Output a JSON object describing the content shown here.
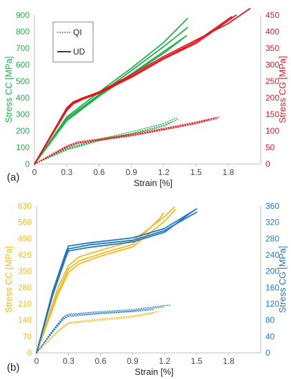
{
  "chart_data": [
    {
      "type": "line",
      "panel_label": "(a)",
      "xlabel": "Strain [%]",
      "ylabel_left": "Stress CC [MPa]",
      "ylabel_right": "Stress CG [MPa]",
      "xlim": [
        0,
        2.1
      ],
      "ylim_left": [
        0,
        900
      ],
      "ylim_right": [
        0,
        450
      ],
      "xticks": [
        "0",
        "0.3",
        "0.6",
        "0.9",
        "1.2",
        "1.5",
        "1.8"
      ],
      "yticks_left": [
        "0",
        "100",
        "200",
        "300",
        "400",
        "500",
        "600",
        "700",
        "800",
        "900"
      ],
      "yticks_right": [
        "0",
        "50",
        "100",
        "150",
        "200",
        "250",
        "300",
        "350",
        "400",
        "450"
      ],
      "colors": {
        "left": "#22b14c",
        "right": "#e8141c"
      },
      "legend": {
        "position": "top-left",
        "entries": [
          {
            "label": "QI",
            "style": "dotted"
          },
          {
            "label": "UD",
            "style": "solid"
          }
        ]
      },
      "series": [
        {
          "axis": "left",
          "style": "solid",
          "x": [
            0,
            0.3,
            0.6,
            0.9,
            1.2,
            1.42
          ],
          "y": [
            0,
            285,
            435,
            580,
            735,
            880
          ]
        },
        {
          "axis": "left",
          "style": "solid",
          "x": [
            0,
            0.3,
            0.6,
            0.9,
            1.2,
            1.42
          ],
          "y": [
            0,
            275,
            420,
            565,
            710,
            825
          ]
        },
        {
          "axis": "left",
          "style": "solid",
          "x": [
            0,
            0.3,
            0.6,
            0.9,
            1.2,
            1.41
          ],
          "y": [
            0,
            265,
            415,
            545,
            680,
            775
          ]
        },
        {
          "axis": "left",
          "style": "solid",
          "x": [
            0,
            0.3,
            0.6,
            0.9,
            1.2,
            1.38
          ],
          "y": [
            0,
            262,
            410,
            540,
            670,
            760
          ]
        },
        {
          "axis": "left",
          "style": "dotted",
          "x": [
            0,
            0.3,
            0.6,
            0.9,
            1.2,
            1.32
          ],
          "y": [
            0,
            95,
            150,
            195,
            245,
            280
          ]
        },
        {
          "axis": "left",
          "style": "dotted",
          "x": [
            0,
            0.3,
            0.6,
            0.9,
            1.2,
            1.33
          ],
          "y": [
            0,
            90,
            145,
            185,
            235,
            270
          ]
        },
        {
          "axis": "left",
          "style": "dotted",
          "x": [
            0,
            0.3,
            0.6,
            0.9,
            1.2,
            1.3
          ],
          "y": [
            0,
            85,
            140,
            180,
            228,
            262
          ]
        },
        {
          "axis": "right",
          "style": "solid",
          "x": [
            0,
            0.3,
            0.36,
            0.45,
            0.6,
            0.9,
            1.2,
            1.5,
            1.8,
            2.0
          ],
          "y": [
            0,
            170,
            188,
            200,
            218,
            270,
            325,
            375,
            425,
            470
          ]
        },
        {
          "axis": "right",
          "style": "solid",
          "x": [
            0,
            0.3,
            0.36,
            0.45,
            0.6,
            0.9,
            1.2,
            1.5,
            1.83
          ],
          "y": [
            0,
            165,
            185,
            198,
            215,
            265,
            320,
            370,
            445
          ]
        },
        {
          "axis": "right",
          "style": "solid",
          "x": [
            0,
            0.3,
            0.36,
            0.45,
            0.6,
            0.9,
            1.2,
            1.5,
            1.87
          ],
          "y": [
            0,
            162,
            182,
            196,
            214,
            262,
            318,
            365,
            450
          ]
        },
        {
          "axis": "right",
          "style": "dotted",
          "x": [
            0,
            0.3,
            0.4,
            0.6,
            0.9,
            1.2,
            1.5,
            1.71
          ],
          "y": [
            0,
            55,
            67,
            76,
            90,
            108,
            127,
            142
          ]
        },
        {
          "axis": "right",
          "style": "dotted",
          "x": [
            0,
            0.3,
            0.4,
            0.6,
            0.9,
            1.2,
            1.5,
            1.68
          ],
          "y": [
            0,
            52,
            64,
            73,
            87,
            105,
            124,
            140
          ]
        },
        {
          "axis": "right",
          "style": "dotted",
          "x": [
            0,
            0.3,
            0.4,
            0.6,
            0.9,
            1.2,
            1.5,
            1.7
          ],
          "y": [
            0,
            50,
            62,
            71,
            85,
            103,
            122,
            138
          ]
        }
      ]
    },
    {
      "type": "line",
      "panel_label": "(b)",
      "xlabel": "Strain [%]",
      "ylabel_left": "Stress CC [MPa]",
      "ylabel_right": "Stress CG [MPa]",
      "xlim": [
        0,
        2.1
      ],
      "ylim_left": [
        0,
        630
      ],
      "ylim_right": [
        0,
        360
      ],
      "xticks": [
        "0",
        "0.3",
        "0.6",
        "0.9",
        "1.2",
        "1.5",
        "1.8"
      ],
      "yticks_left": [
        "0",
        "70",
        "140",
        "210",
        "280",
        "350",
        "420",
        "490",
        "560",
        "630"
      ],
      "yticks_right": [
        "0",
        "40",
        "80",
        "120",
        "160",
        "200",
        "240",
        "280",
        "320",
        "360"
      ],
      "colors": {
        "left": "#f5b820",
        "right": "#1f77c4"
      },
      "series": [
        {
          "axis": "left",
          "style": "solid",
          "x": [
            0,
            0.2,
            0.3,
            0.4,
            0.6,
            0.9,
            1.2,
            1.29
          ],
          "y": [
            0,
            280,
            375,
            412,
            440,
            480,
            585,
            625
          ]
        },
        {
          "axis": "left",
          "style": "solid",
          "x": [
            0,
            0.2,
            0.3,
            0.4,
            0.6,
            0.9,
            1.15,
            1.19
          ],
          "y": [
            0,
            260,
            360,
            395,
            425,
            465,
            575,
            600
          ]
        },
        {
          "axis": "left",
          "style": "solid",
          "x": [
            0,
            0.2,
            0.3,
            0.4,
            0.6,
            0.9,
            1.2,
            1.3
          ],
          "y": [
            0,
            250,
            345,
            382,
            415,
            455,
            565,
            615
          ]
        },
        {
          "axis": "left",
          "style": "dotted",
          "x": [
            0,
            0.2,
            0.3,
            0.6,
            0.9,
            1.15
          ],
          "y": [
            0,
            95,
            130,
            145,
            158,
            178
          ]
        },
        {
          "axis": "left",
          "style": "dotted",
          "x": [
            0,
            0.2,
            0.3,
            0.6,
            0.9,
            1.1
          ],
          "y": [
            0,
            90,
            125,
            140,
            153,
            170
          ]
        },
        {
          "axis": "right",
          "style": "solid",
          "x": [
            0,
            0.15,
            0.28,
            0.3,
            0.5,
            0.9,
            1.2,
            1.5
          ],
          "y": [
            0,
            150,
            250,
            262,
            270,
            282,
            305,
            353
          ]
        },
        {
          "axis": "right",
          "style": "solid",
          "x": [
            0,
            0.15,
            0.28,
            0.3,
            0.5,
            0.9,
            1.2,
            1.5
          ],
          "y": [
            0,
            145,
            243,
            255,
            265,
            276,
            300,
            345
          ]
        },
        {
          "axis": "right",
          "style": "solid",
          "x": [
            0,
            0.15,
            0.28,
            0.3,
            0.5,
            0.9,
            1.2,
            1.48
          ],
          "y": [
            0,
            140,
            238,
            250,
            259,
            272,
            296,
            350
          ]
        },
        {
          "axis": "right",
          "style": "dotted",
          "x": [
            0,
            0.15,
            0.25,
            0.3,
            0.6,
            0.9,
            1.2,
            1.25
          ],
          "y": [
            0,
            55,
            88,
            95,
            101,
            106,
            116,
            117
          ]
        },
        {
          "axis": "right",
          "style": "dotted",
          "x": [
            0,
            0.15,
            0.25,
            0.3,
            0.6,
            0.9,
            1.15,
            1.19
          ],
          "y": [
            0,
            52,
            85,
            92,
            98,
            103,
            111,
            112
          ]
        },
        {
          "axis": "right",
          "style": "dotted",
          "x": [
            0,
            0.15,
            0.25,
            0.3,
            0.6,
            0.9,
            1.1
          ],
          "y": [
            0,
            50,
            82,
            89,
            96,
            101,
            106
          ]
        }
      ]
    }
  ]
}
